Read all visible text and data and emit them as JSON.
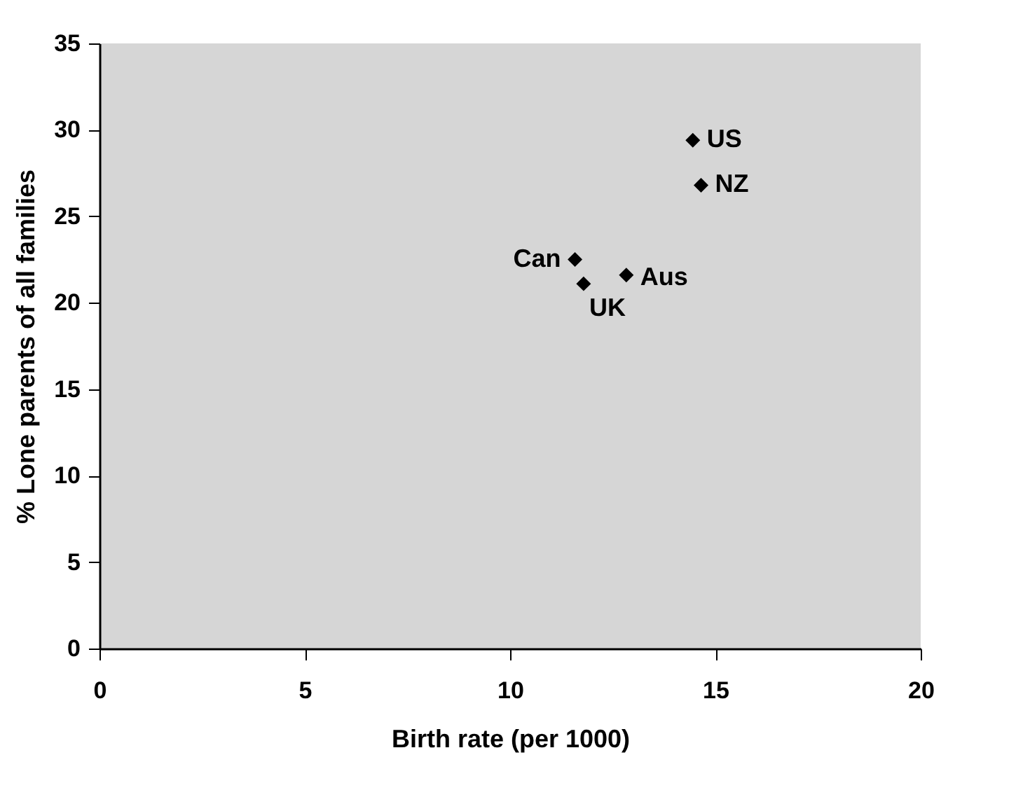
{
  "chart_data": {
    "type": "scatter",
    "xlabel": "Birth rate (per 1000)",
    "ylabel": "% Lone parents of all families",
    "x": [
      14.45,
      14.65,
      11.58,
      11.79,
      12.83
    ],
    "values": [
      29.4,
      26.8,
      22.5,
      21.1,
      21.6
    ],
    "color": "#000000",
    "marker": "diamond",
    "grid": false,
    "xlim": [
      0,
      20
    ],
    "xticks": [
      0,
      5,
      10,
      15,
      20
    ],
    "ylim": [
      0,
      35
    ],
    "yticks": [
      0,
      5,
      10,
      15,
      20,
      25,
      30,
      35
    ],
    "annotations": [
      {
        "text": "US",
        "x": 14.45,
        "y": 29.4
      },
      {
        "text": "NZ",
        "x": 14.65,
        "y": 26.8
      },
      {
        "text": "Can",
        "x": 11.58,
        "y": 22.5
      },
      {
        "text": "UK",
        "x": 11.79,
        "y": 21.1
      },
      {
        "text": "Aus",
        "x": 12.83,
        "y": 21.6
      }
    ]
  }
}
